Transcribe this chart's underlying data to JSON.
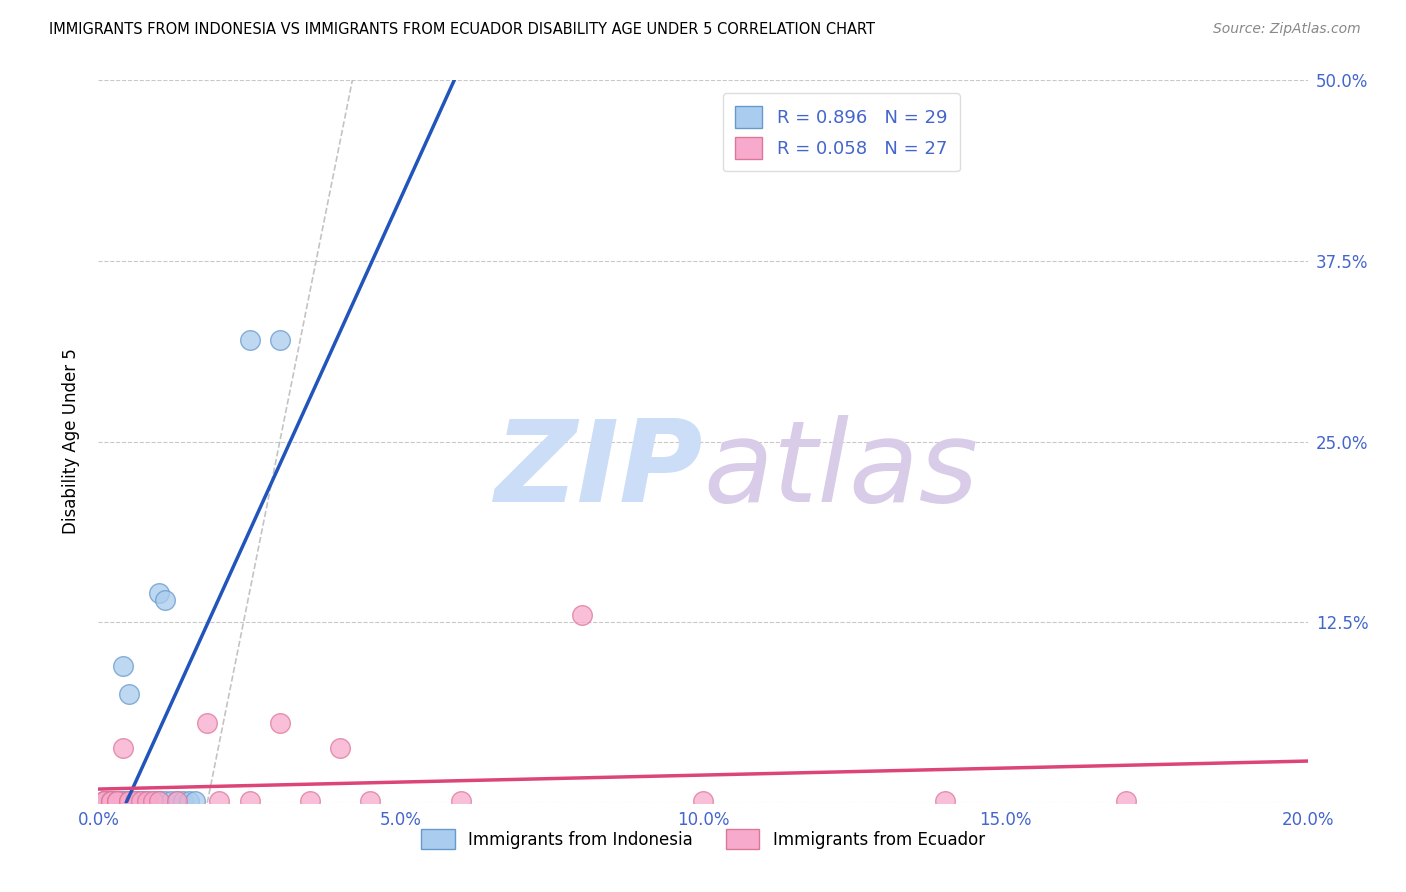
{
  "title": "IMMIGRANTS FROM INDONESIA VS IMMIGRANTS FROM ECUADOR DISABILITY AGE UNDER 5 CORRELATION CHART",
  "source": "Source: ZipAtlas.com",
  "ylabel": "Disability Age Under 5",
  "xlim": [
    0.0,
    0.2
  ],
  "ylim": [
    0.0,
    0.5
  ],
  "xticks": [
    0.0,
    0.05,
    0.1,
    0.15,
    0.2
  ],
  "xticklabels": [
    "0.0%",
    "5.0%",
    "10.0%",
    "15.0%",
    "20.0%"
  ],
  "yticks_right": [
    0.125,
    0.25,
    0.375,
    0.5
  ],
  "yticklabels_right": [
    "12.5%",
    "25.0%",
    "37.5%",
    "50.0%"
  ],
  "blue_fill": "#aaccee",
  "blue_edge": "#6699cc",
  "pink_fill": "#f8aacc",
  "pink_edge": "#dd7799",
  "blue_line": "#2255bb",
  "pink_line": "#dd4477",
  "grid_color": "#bbbbbb",
  "ref_color": "#aaaaaa",
  "tick_color": "#4466cc",
  "watermark_zip": "#ccddf8",
  "watermark_atlas": "#d8cce8",
  "R_indonesia": 0.896,
  "N_indonesia": 29,
  "R_ecuador": 0.058,
  "N_ecuador": 27,
  "indonesia_x": [
    0.001,
    0.001,
    0.002,
    0.002,
    0.003,
    0.003,
    0.003,
    0.004,
    0.004,
    0.005,
    0.005,
    0.006,
    0.006,
    0.007,
    0.007,
    0.008,
    0.008,
    0.009,
    0.01,
    0.01,
    0.011,
    0.012,
    0.013,
    0.014,
    0.015,
    0.016,
    0.017,
    0.025,
    0.03
  ],
  "indonesia_y": [
    0.001,
    0.001,
    0.001,
    0.001,
    0.001,
    0.001,
    0.001,
    0.001,
    0.001,
    0.001,
    0.001,
    0.001,
    0.001,
    0.001,
    0.001,
    0.001,
    0.001,
    0.001,
    0.001,
    0.001,
    0.001,
    0.001,
    0.001,
    0.001,
    0.001,
    0.001,
    0.001,
    0.32,
    0.32
  ],
  "ecuador_x": [
    0.001,
    0.001,
    0.002,
    0.002,
    0.003,
    0.003,
    0.004,
    0.005,
    0.005,
    0.006,
    0.007,
    0.008,
    0.009,
    0.01,
    0.013,
    0.018,
    0.02,
    0.025,
    0.03,
    0.035,
    0.04,
    0.045,
    0.06,
    0.08,
    0.1,
    0.14,
    0.17
  ],
  "ecuador_y": [
    0.001,
    0.001,
    0.001,
    0.001,
    0.001,
    0.001,
    0.038,
    0.001,
    0.001,
    0.001,
    0.001,
    0.001,
    0.001,
    0.001,
    0.001,
    0.055,
    0.001,
    0.001,
    0.055,
    0.001,
    0.038,
    0.001,
    0.001,
    0.13,
    0.001,
    0.001,
    0.001
  ]
}
